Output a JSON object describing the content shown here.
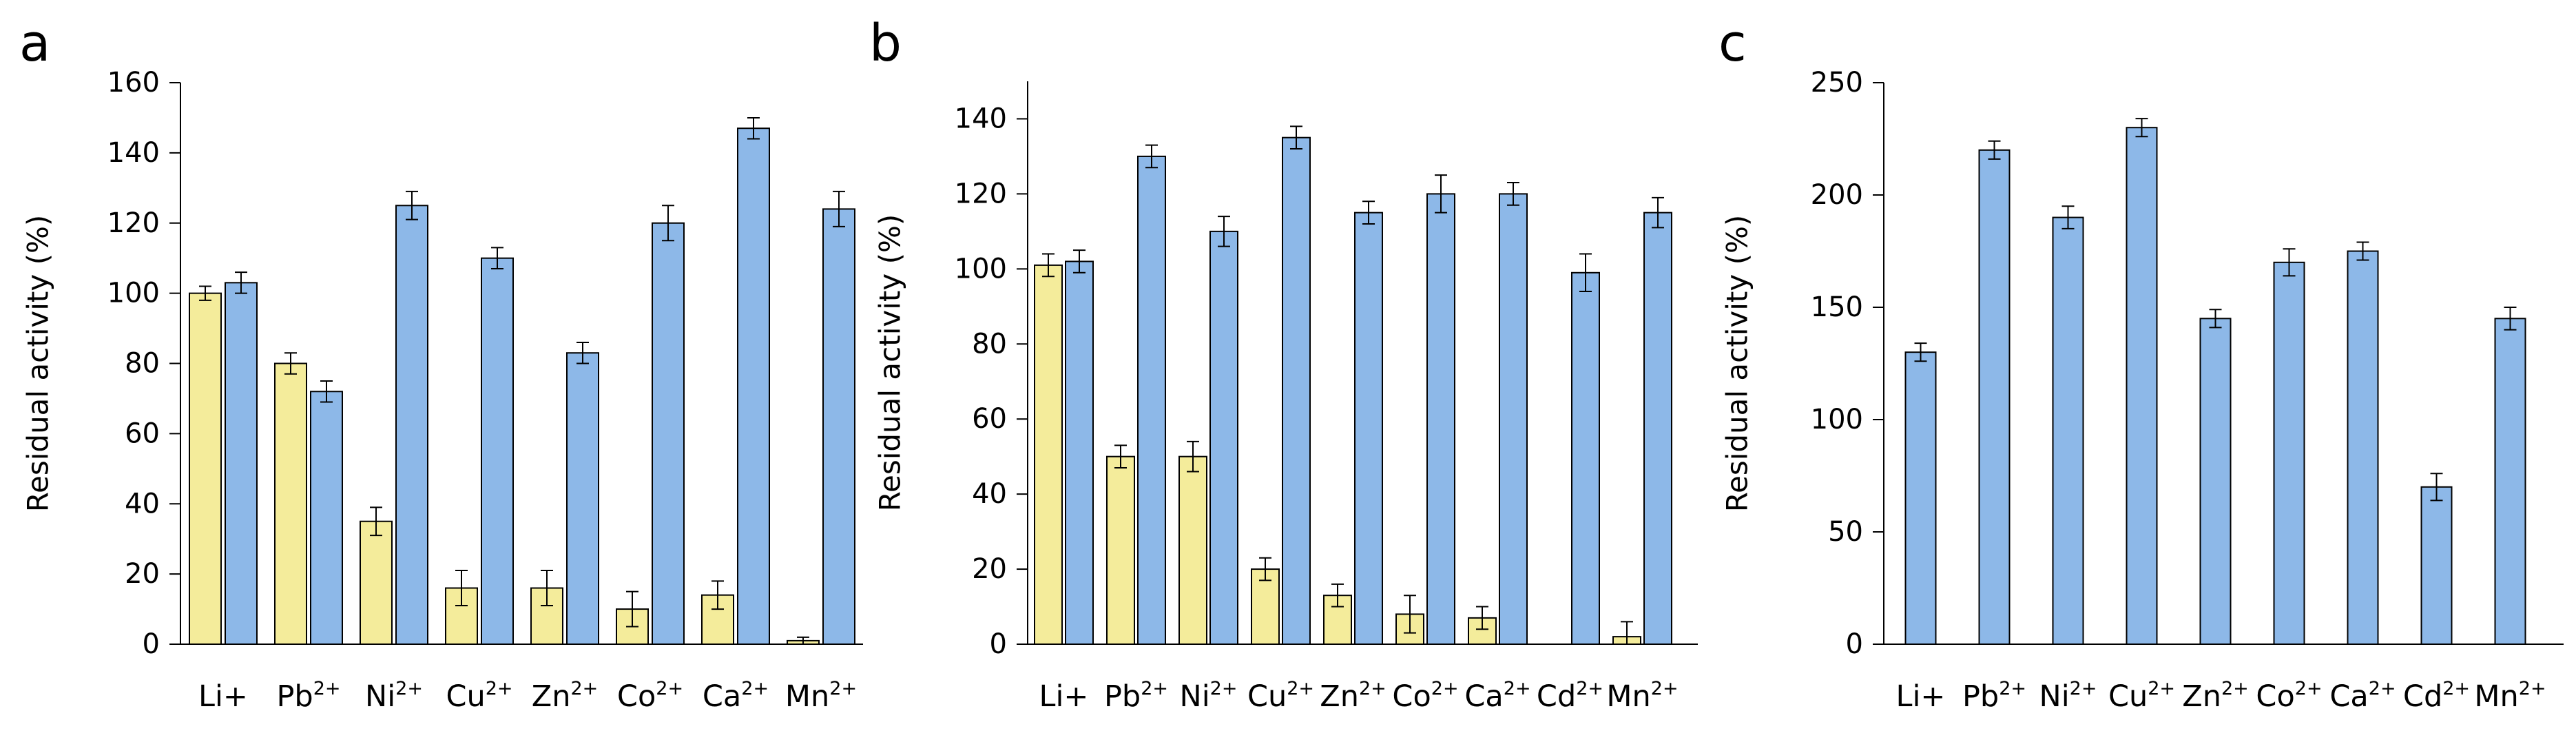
{
  "figure": {
    "colors": {
      "yellow": "#F4EC9B",
      "blue": "#8DB8E8",
      "stroke": "#000000"
    }
  },
  "chart_data": [
    {
      "type": "bar",
      "panel_label": "a",
      "ylabel": "Residual activity (%)",
      "ylim": [
        0,
        160
      ],
      "yticks": [
        0,
        20,
        40,
        60,
        80,
        100,
        120,
        140,
        160
      ],
      "categories": [
        {
          "base": "Li+",
          "sup": ""
        },
        {
          "base": "Pb",
          "sup": "2+"
        },
        {
          "base": "Ni",
          "sup": "2+"
        },
        {
          "base": "Cu",
          "sup": "2+"
        },
        {
          "base": "Zn",
          "sup": "2+"
        },
        {
          "base": "Co",
          "sup": "2+"
        },
        {
          "base": "Ca",
          "sup": "2+"
        },
        {
          "base": "Mn",
          "sup": "2+"
        }
      ],
      "series": [
        {
          "color": "yellow",
          "values": [
            100,
            80,
            35,
            16,
            16,
            10,
            14,
            1
          ],
          "errors": [
            2,
            3,
            4,
            5,
            5,
            5,
            4,
            1
          ]
        },
        {
          "color": "blue",
          "values": [
            103,
            72,
            125,
            110,
            83,
            120,
            147,
            124
          ],
          "errors": [
            3,
            3,
            4,
            3,
            3,
            5,
            3,
            5
          ]
        }
      ]
    },
    {
      "type": "bar",
      "panel_label": "b",
      "ylabel": "Residual activity (%)",
      "ylim": [
        0,
        150
      ],
      "yticks": [
        0,
        20,
        40,
        60,
        80,
        100,
        120,
        140
      ],
      "categories": [
        {
          "base": "Li+",
          "sup": ""
        },
        {
          "base": "Pb",
          "sup": "2+"
        },
        {
          "base": "Ni",
          "sup": "2+"
        },
        {
          "base": "Cu",
          "sup": "2+"
        },
        {
          "base": "Zn",
          "sup": "2+"
        },
        {
          "base": "Co",
          "sup": "2+"
        },
        {
          "base": "Ca",
          "sup": "2+"
        },
        {
          "base": "Cd",
          "sup": "2+"
        },
        {
          "base": "Mn",
          "sup": "2+"
        }
      ],
      "series": [
        {
          "color": "yellow",
          "values": [
            101,
            50,
            50,
            20,
            13,
            8,
            7,
            null,
            2
          ],
          "errors": [
            3,
            3,
            4,
            3,
            3,
            5,
            3,
            0,
            4
          ]
        },
        {
          "color": "blue",
          "values": [
            102,
            130,
            110,
            135,
            115,
            120,
            120,
            99,
            115
          ],
          "errors": [
            3,
            3,
            4,
            3,
            3,
            5,
            3,
            5,
            4
          ]
        }
      ]
    },
    {
      "type": "bar",
      "panel_label": "c",
      "ylabel": "Residual activity (%)",
      "ylim": [
        0,
        250
      ],
      "yticks": [
        0,
        50,
        100,
        150,
        200,
        250
      ],
      "categories": [
        {
          "base": "Li+",
          "sup": ""
        },
        {
          "base": "Pb",
          "sup": "2+"
        },
        {
          "base": "Ni",
          "sup": "2+"
        },
        {
          "base": "Cu",
          "sup": "2+"
        },
        {
          "base": "Zn",
          "sup": "2+"
        },
        {
          "base": "Co",
          "sup": "2+"
        },
        {
          "base": "Ca",
          "sup": "2+"
        },
        {
          "base": "Cd",
          "sup": "2+"
        },
        {
          "base": "Mn",
          "sup": "2+"
        }
      ],
      "series": [
        {
          "color": "blue",
          "values": [
            130,
            220,
            190,
            230,
            145,
            170,
            175,
            70,
            145
          ],
          "errors": [
            4,
            4,
            5,
            4,
            4,
            6,
            4,
            6,
            5
          ]
        }
      ]
    }
  ]
}
